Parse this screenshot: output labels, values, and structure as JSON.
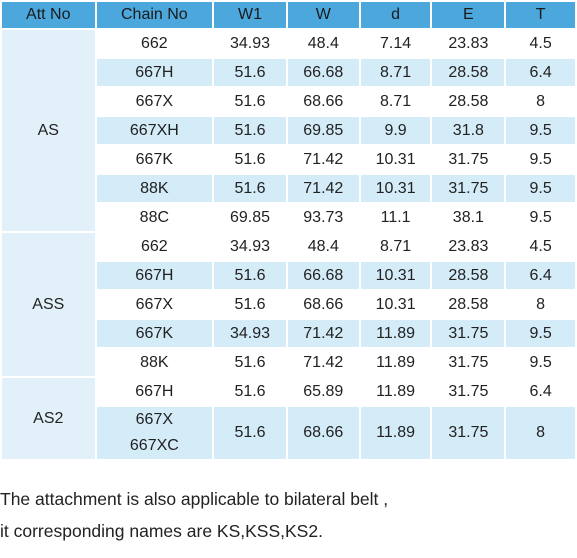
{
  "table": {
    "header": [
      "Att No",
      "Chain No",
      "W1",
      "W",
      "d",
      "E",
      "T"
    ],
    "groups": [
      {
        "att": "AS",
        "rows": [
          [
            "662",
            "34.93",
            "48.4",
            "7.14",
            "23.83",
            "4.5"
          ],
          [
            "667H",
            "51.6",
            "66.68",
            "8.71",
            "28.58",
            "6.4"
          ],
          [
            "667X",
            "51.6",
            "68.66",
            "8.71",
            "28.58",
            "8"
          ],
          [
            "667XH",
            "51.6",
            "69.85",
            "9.9",
            "31.8",
            "9.5"
          ],
          [
            "667K",
            "51.6",
            "71.42",
            "10.31",
            "31.75",
            "9.5"
          ],
          [
            "88K",
            "51.6",
            "71.42",
            "10.31",
            "31.75",
            "9.5"
          ],
          [
            "88C",
            "69.85",
            "93.73",
            "11.1",
            "38.1",
            "9.5"
          ]
        ]
      },
      {
        "att": "ASS",
        "rows": [
          [
            "662",
            "34.93",
            "48.4",
            "8.71",
            "23.83",
            "4.5"
          ],
          [
            "667H",
            "51.6",
            "66.68",
            "10.31",
            "28.58",
            "6.4"
          ],
          [
            "667X",
            "51.6",
            "68.66",
            "10.31",
            "28.58",
            "8"
          ],
          [
            "667K",
            "34.93",
            "71.42",
            "11.89",
            "31.75",
            "9.5"
          ],
          [
            "88K",
            "51.6",
            "71.42",
            "11.89",
            "31.75",
            "9.5"
          ]
        ]
      },
      {
        "att": "AS2",
        "rows": [
          [
            "667H",
            "51.6",
            "65.89",
            "11.89",
            "31.75",
            "6.4"
          ],
          [
            [
              "667X",
              "667XC"
            ],
            "51.6",
            "68.66",
            "11.89",
            "31.75",
            "8"
          ]
        ]
      }
    ]
  },
  "note": [
    "The attachment is also applicable to bilateral belt ,",
    "it corresponding names are KS,KSS,KS2."
  ]
}
